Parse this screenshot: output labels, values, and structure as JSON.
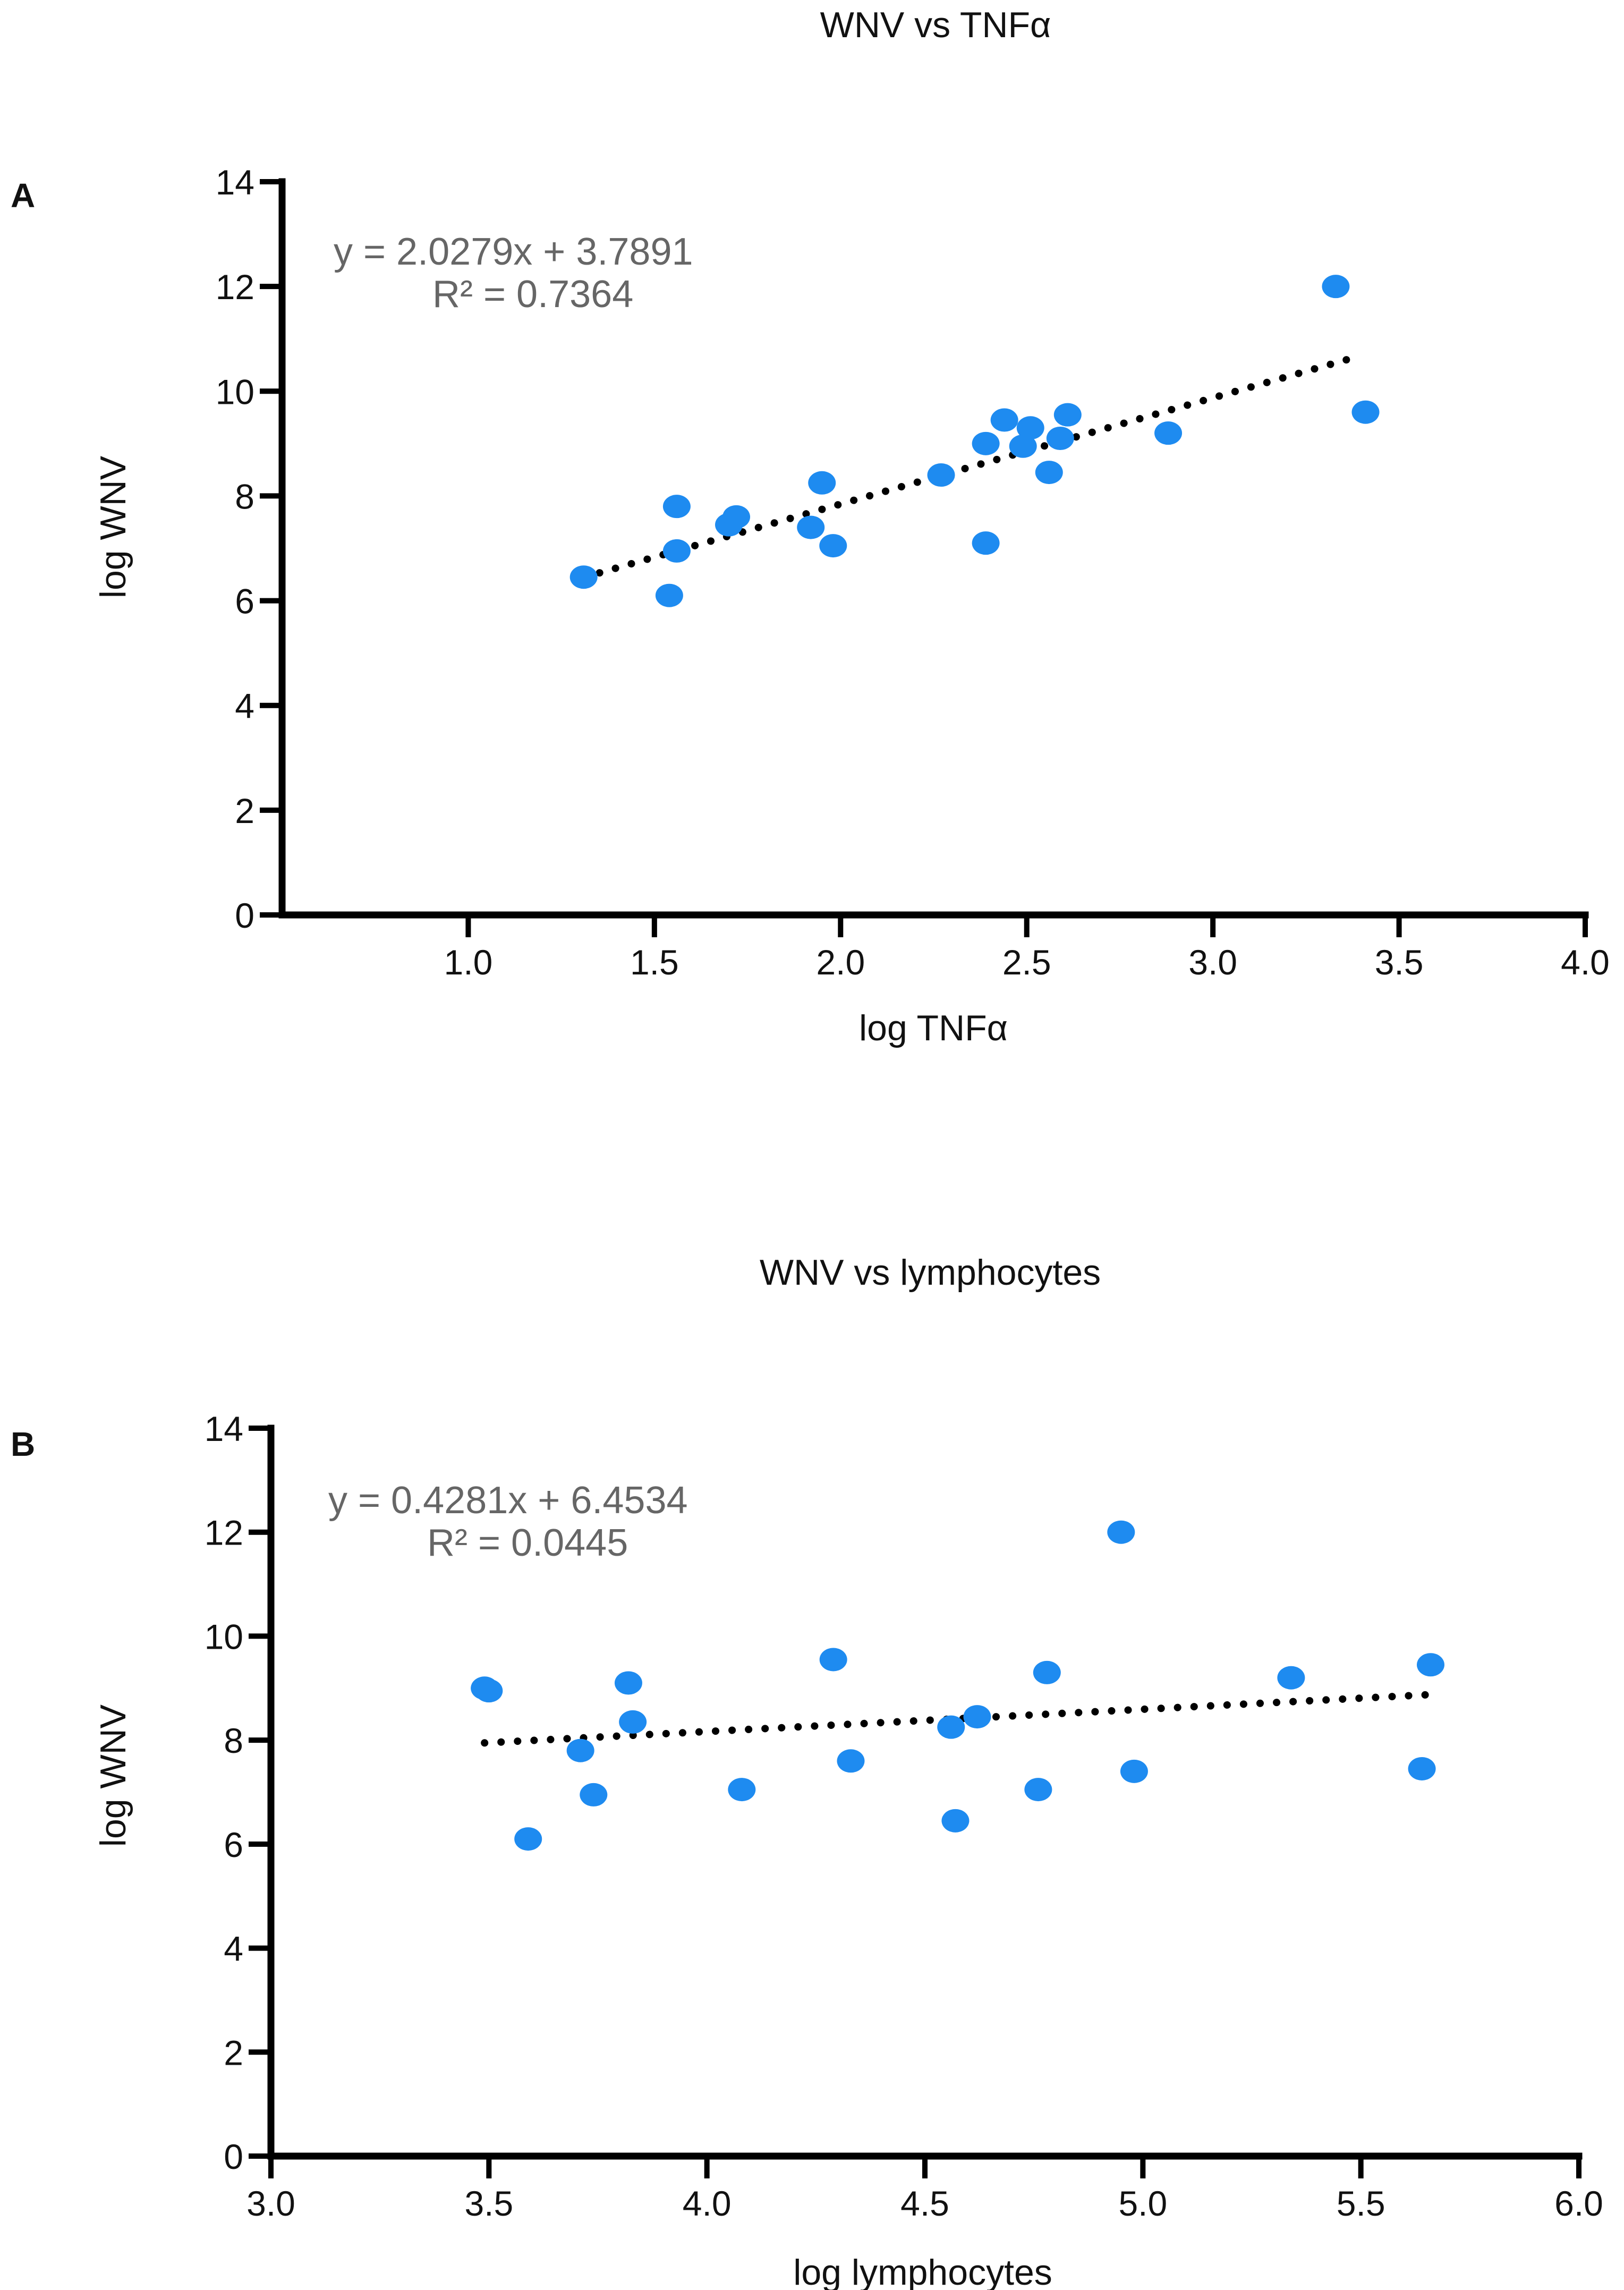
{
  "chart_data": [
    {
      "type": "scatter",
      "panel_label": "A",
      "title": "WNV vs TNFα",
      "xlabel": "log TNFα",
      "ylabel": "log WNV",
      "xlim": [
        0.5,
        4.0
      ],
      "ylim": [
        0,
        14
      ],
      "xticks": [
        "1.0",
        "1.5",
        "2.0",
        "2.5",
        "3.0",
        "3.5",
        "4.0"
      ],
      "xtick_values": [
        1.0,
        1.5,
        2.0,
        2.5,
        3.0,
        3.5,
        4.0
      ],
      "yticks": [
        "0",
        "2",
        "4",
        "6",
        "8",
        "10",
        "12",
        "14"
      ],
      "ytick_values": [
        0,
        2,
        4,
        6,
        8,
        10,
        12,
        14
      ],
      "grid": false,
      "point_color": "#1E8BF0",
      "trendline": {
        "slope": 2.0279,
        "intercept": 3.7891,
        "x_range": [
          1.31,
          3.38
        ],
        "style": "dotted",
        "color": "#000000"
      },
      "equation_label": "y = 2.0279x + 3.7891",
      "r2_label": "R² = 0.7364",
      "points": [
        {
          "x": 1.31,
          "y": 6.45
        },
        {
          "x": 1.54,
          "y": 6.1
        },
        {
          "x": 1.56,
          "y": 7.8
        },
        {
          "x": 1.56,
          "y": 6.95
        },
        {
          "x": 1.7,
          "y": 7.45
        },
        {
          "x": 1.72,
          "y": 7.6
        },
        {
          "x": 1.92,
          "y": 7.4
        },
        {
          "x": 1.95,
          "y": 8.25
        },
        {
          "x": 1.98,
          "y": 7.05
        },
        {
          "x": 2.27,
          "y": 8.4
        },
        {
          "x": 2.39,
          "y": 9.0
        },
        {
          "x": 2.39,
          "y": 7.1
        },
        {
          "x": 2.44,
          "y": 9.45
        },
        {
          "x": 2.49,
          "y": 8.95
        },
        {
          "x": 2.51,
          "y": 9.3
        },
        {
          "x": 2.56,
          "y": 8.45
        },
        {
          "x": 2.59,
          "y": 9.1
        },
        {
          "x": 2.61,
          "y": 9.55
        },
        {
          "x": 2.88,
          "y": 9.2
        },
        {
          "x": 3.33,
          "y": 12.0
        },
        {
          "x": 3.41,
          "y": 9.6
        }
      ]
    },
    {
      "type": "scatter",
      "panel_label": "B",
      "title": "WNV vs lymphocytes",
      "xlabel": "log lymphocytes",
      "ylabel": "log WNV",
      "xlim": [
        3.0,
        6.0
      ],
      "ylim": [
        0,
        14
      ],
      "xticks": [
        "3.0",
        "3.5",
        "4.0",
        "4.5",
        "5.0",
        "5.5",
        "6.0"
      ],
      "xtick_values": [
        3.0,
        3.5,
        4.0,
        4.5,
        5.0,
        5.5,
        6.0
      ],
      "yticks": [
        "0",
        "2",
        "4",
        "6",
        "8",
        "10",
        "12",
        "14"
      ],
      "ytick_values": [
        0,
        2,
        4,
        6,
        8,
        10,
        12,
        14
      ],
      "grid": false,
      "point_color": "#1E8BF0",
      "trendline": {
        "slope": 0.4281,
        "intercept": 6.4534,
        "x_range": [
          3.49,
          5.66
        ],
        "style": "dotted",
        "color": "#000000"
      },
      "equation_label": "y = 0.4281x + 6.4534",
      "r2_label": "R² = 0.0445",
      "points": [
        {
          "x": 3.49,
          "y": 9.0
        },
        {
          "x": 3.5,
          "y": 8.95
        },
        {
          "x": 3.59,
          "y": 6.1
        },
        {
          "x": 3.71,
          "y": 7.8
        },
        {
          "x": 3.74,
          "y": 6.95
        },
        {
          "x": 3.82,
          "y": 9.1
        },
        {
          "x": 3.83,
          "y": 8.35
        },
        {
          "x": 4.08,
          "y": 7.05
        },
        {
          "x": 4.29,
          "y": 9.55
        },
        {
          "x": 4.33,
          "y": 7.6
        },
        {
          "x": 4.56,
          "y": 8.25
        },
        {
          "x": 4.57,
          "y": 6.45
        },
        {
          "x": 4.62,
          "y": 8.45
        },
        {
          "x": 4.76,
          "y": 7.05
        },
        {
          "x": 4.78,
          "y": 9.3
        },
        {
          "x": 4.95,
          "y": 12.0
        },
        {
          "x": 4.98,
          "y": 7.4
        },
        {
          "x": 5.34,
          "y": 9.2
        },
        {
          "x": 5.64,
          "y": 7.45
        },
        {
          "x": 5.66,
          "y": 9.45
        }
      ]
    }
  ]
}
